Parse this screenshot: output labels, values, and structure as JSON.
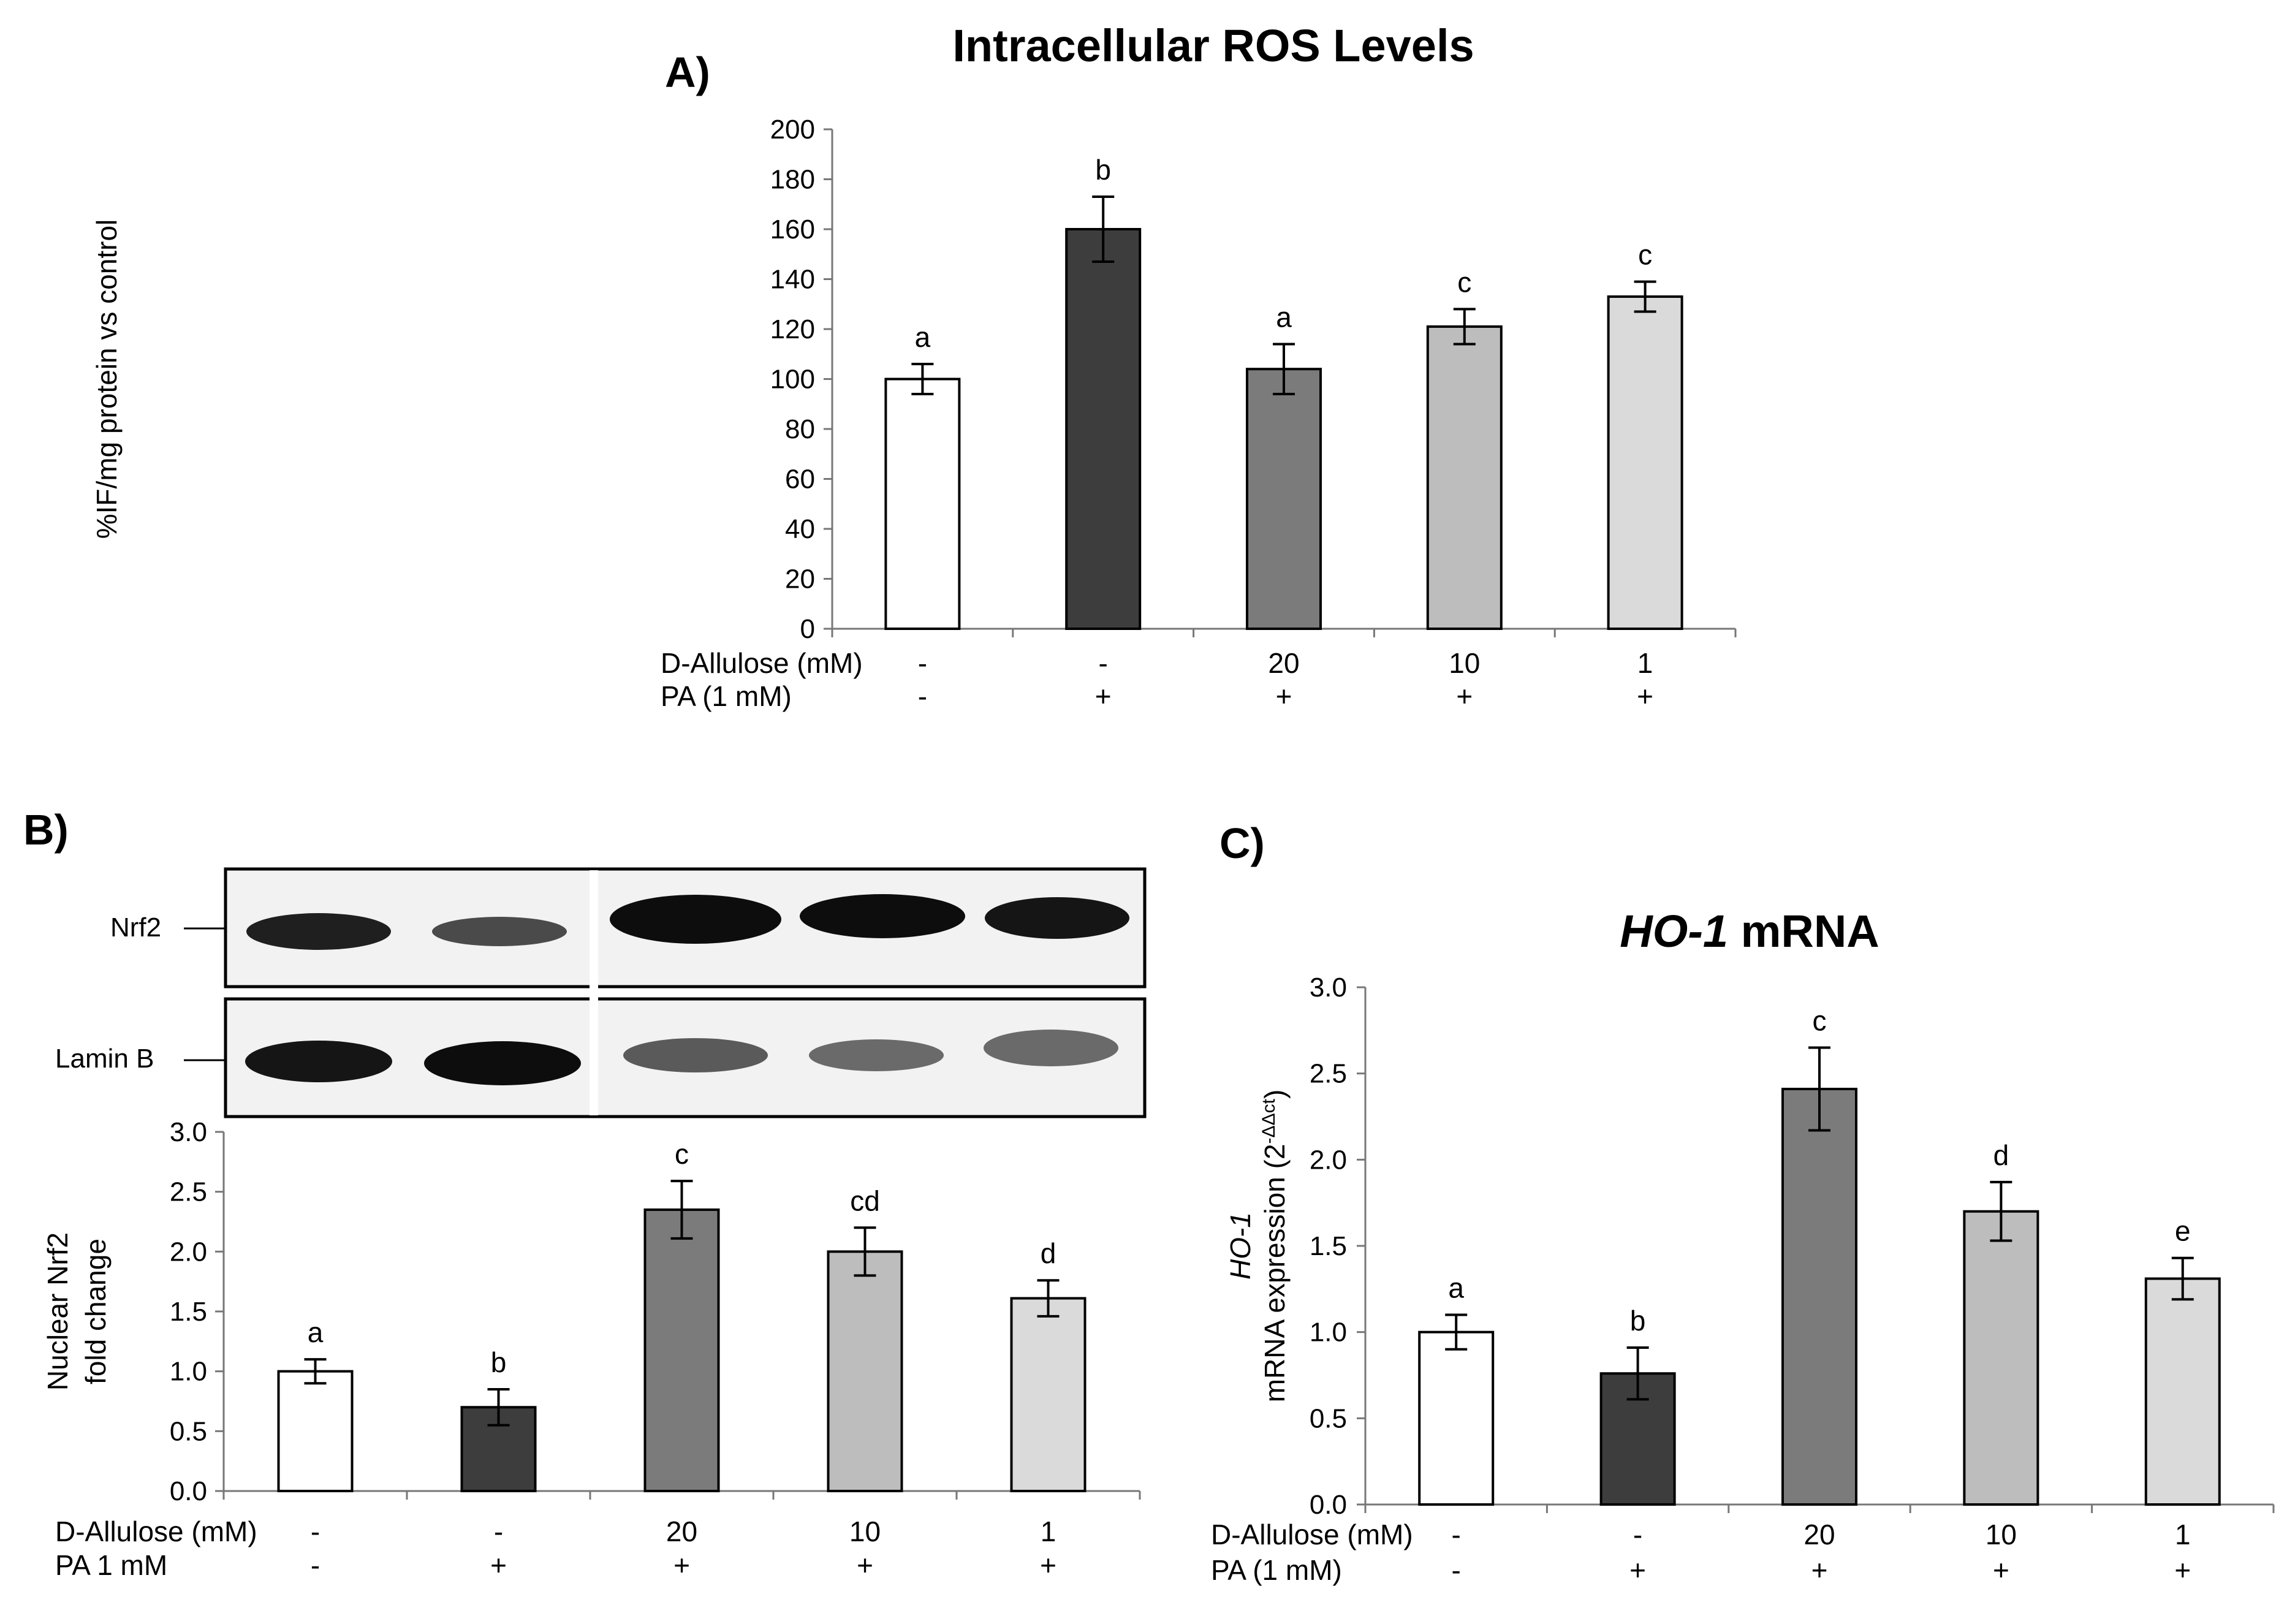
{
  "panels": {
    "A": "A)",
    "B": "B)",
    "C": "C)"
  },
  "chart_data": [
    {
      "id": "A",
      "type": "bar",
      "title": "Intracellular ROS Levels",
      "ylabel": "%IF/mg protein vs control",
      "ylim": [
        0,
        200
      ],
      "yticks": [
        "0",
        "20",
        "40",
        "60",
        "80",
        "100",
        "120",
        "140",
        "160",
        "180",
        "200"
      ],
      "values": [
        100,
        160,
        104,
        121,
        133
      ],
      "errors": [
        6,
        13,
        10,
        7,
        6
      ],
      "letters": [
        "a",
        "b",
        "a",
        "c",
        "c"
      ],
      "colors": [
        "#ffffff",
        "#3d3d3d",
        "#7b7b7b",
        "#bdbdbd",
        "#dadada"
      ],
      "rows": [
        {
          "label": "D-Allulose (mM)",
          "values": [
            "-",
            "-",
            "20",
            "10",
            "1"
          ]
        },
        {
          "label": "PA (1 mM)",
          "values": [
            "-",
            "+",
            "+",
            "+",
            "+"
          ]
        }
      ]
    },
    {
      "id": "B",
      "type": "bar",
      "title": "",
      "ylabel_lines": [
        "Nuclear Nrf2",
        "fold change"
      ],
      "ylim": [
        0,
        3
      ],
      "yticks": [
        "0.0",
        "0.5",
        "1.0",
        "1.5",
        "2.0",
        "2.5",
        "3.0"
      ],
      "values": [
        1.0,
        0.7,
        2.35,
        2.0,
        1.61
      ],
      "errors": [
        0.1,
        0.15,
        0.24,
        0.2,
        0.15
      ],
      "letters": [
        "a",
        "b",
        "c",
        "cd",
        "d"
      ],
      "colors": [
        "#ffffff",
        "#3d3d3d",
        "#7b7b7b",
        "#bdbdbd",
        "#dadada"
      ],
      "rows": [
        {
          "label": "D-Allulose (mM)",
          "values": [
            "-",
            "-",
            "20",
            "10",
            "1"
          ]
        },
        {
          "label": "PA 1 mM",
          "values": [
            "-",
            "+",
            "+",
            "+",
            "+"
          ]
        }
      ],
      "blot_labels": [
        "Nrf2",
        "Lamin B"
      ]
    },
    {
      "id": "C",
      "type": "bar",
      "title_italic": "HO-1",
      "title_rest": " mRNA",
      "ylabel_line1": "HO-1",
      "ylabel_line2": "mRNA expression (2",
      "ylabel_sup": "-ΔΔct",
      "ylabel_close": ")",
      "ylim": [
        0,
        3
      ],
      "yticks": [
        "0.0",
        "0.5",
        "1.0",
        "1.5",
        "2.0",
        "2.5",
        "3.0"
      ],
      "values": [
        1.0,
        0.76,
        2.41,
        1.7,
        1.31
      ],
      "errors": [
        0.1,
        0.15,
        0.24,
        0.17,
        0.12
      ],
      "letters": [
        "a",
        "b",
        "c",
        "d",
        "e"
      ],
      "colors": [
        "#ffffff",
        "#3d3d3d",
        "#7b7b7b",
        "#bdbdbd",
        "#dadada"
      ],
      "rows": [
        {
          "label": "D-Allulose (mM)",
          "values": [
            "-",
            "-",
            "20",
            "10",
            "1"
          ]
        },
        {
          "label": "PA (1 mM)",
          "values": [
            "-",
            "+",
            "+",
            "+",
            "+"
          ]
        }
      ]
    }
  ]
}
